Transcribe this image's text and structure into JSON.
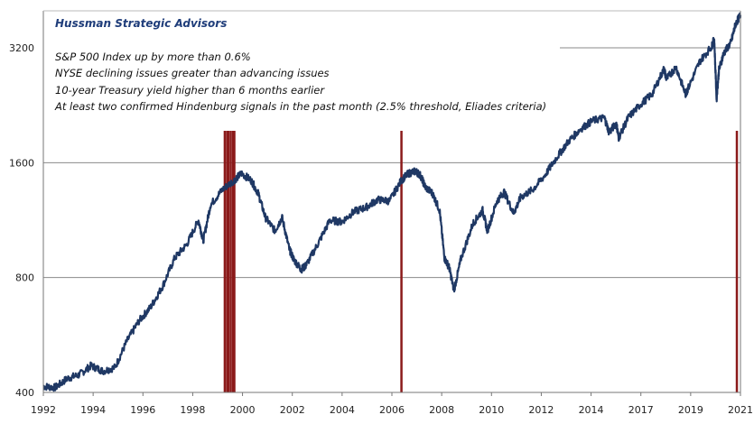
{
  "chart_data": {
    "type": "line",
    "title": "",
    "source": "Hussman Strategic Advisors",
    "annotations": [
      "S&P 500 Index up by more than 0.6%",
      "NYSE declining issues greater than advancing issues",
      "10-year Treasury yield higher than 6 months earlier",
      "At least two confirmed Hindenburg signals in the past month (2.5% threshold, Eliades criteria)"
    ],
    "xlabel": "",
    "ylabel": "",
    "y_scale": "log",
    "ylim": [
      400,
      4000
    ],
    "xlim": [
      1992,
      2021.2
    ],
    "grid": "horizontal",
    "x_tick_labels": [
      "1992",
      "1994",
      "1996",
      "1998",
      "2000",
      "2002",
      "2004",
      "2006",
      "2008",
      "2010",
      "2012",
      "2014",
      "2017",
      "2019",
      "2021"
    ],
    "y_tick_labels": [
      "400",
      "800",
      "1600",
      "3200"
    ],
    "y_ticks": [
      400,
      800,
      1600,
      3200
    ],
    "series": [
      {
        "color": "#1f3864",
        "x": [
          1992.0,
          1992.5,
          1993.0,
          1993.5,
          1994.0,
          1994.5,
          1995.0,
          1995.5,
          1996.0,
          1996.5,
          1997.0,
          1997.5,
          1998.0,
          1998.5,
          1998.7,
          1999.0,
          1999.5,
          2000.0,
          2000.3,
          2000.7,
          2001.0,
          2001.3,
          2001.7,
          2002.0,
          2002.3,
          2002.5,
          2002.8,
          2003.0,
          2003.5,
          2004.0,
          2004.5,
          2005.0,
          2005.5,
          2006.0,
          2006.5,
          2007.0,
          2007.3,
          2007.6,
          2007.8,
          2008.0,
          2008.3,
          2008.6,
          2008.8,
          2009.0,
          2009.2,
          2009.5,
          2010.0,
          2010.4,
          2010.6,
          2011.0,
          2011.3,
          2011.7,
          2012.0,
          2012.5,
          2013.0,
          2013.5,
          2014.0,
          2014.5,
          2015.0,
          2015.5,
          2015.7,
          2016.0,
          2016.1,
          2016.5,
          2017.0,
          2017.5,
          2018.0,
          2018.1,
          2018.5,
          2018.9,
          2019.0,
          2019.5,
          2020.0,
          2020.1,
          2020.2,
          2020.3,
          2020.5,
          2020.8,
          2021.0,
          2021.2
        ],
        "y": [
          415,
          412,
          435,
          445,
          470,
          455,
          465,
          545,
          615,
          670,
          760,
          900,
          975,
          1130,
          1000,
          1240,
          1360,
          1440,
          1500,
          1440,
          1330,
          1150,
          1060,
          1150,
          950,
          890,
          840,
          860,
          980,
          1130,
          1120,
          1190,
          1220,
          1280,
          1270,
          1440,
          1500,
          1520,
          1480,
          1380,
          1330,
          1200,
          900,
          850,
          740,
          900,
          1110,
          1200,
          1060,
          1270,
          1340,
          1180,
          1300,
          1360,
          1480,
          1650,
          1820,
          1960,
          2060,
          2100,
          1920,
          2030,
          1860,
          2100,
          2270,
          2420,
          2820,
          2650,
          2850,
          2420,
          2500,
          2950,
          3230,
          3380,
          2350,
          2800,
          3100,
          3300,
          3700,
          3900
        ]
      }
    ],
    "signal_dates": [
      1999.6,
      1999.7,
      1999.75,
      1999.85,
      1999.95,
      2000.0,
      2007.0,
      2021.05
    ]
  }
}
